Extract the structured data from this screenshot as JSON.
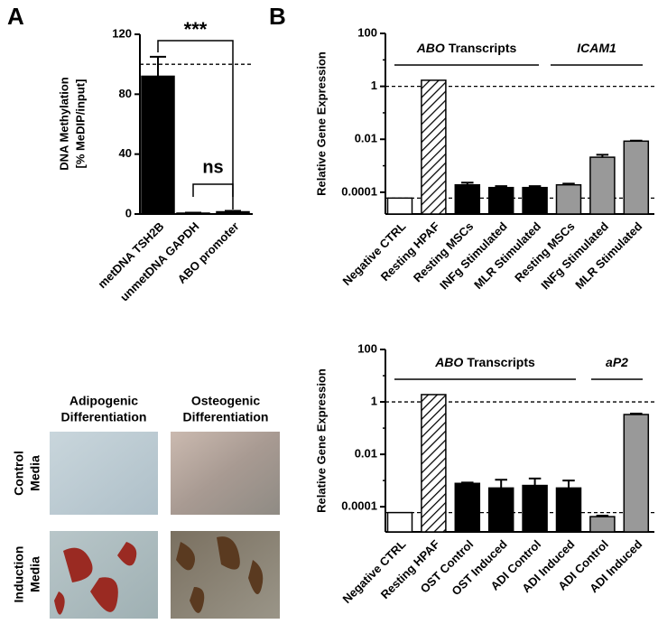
{
  "panels": [
    "A",
    "B"
  ],
  "chart_data": [
    {
      "type": "bar",
      "log": false,
      "ylabel": [
        "DNA Methylation",
        "[% MeDIP/input]"
      ],
      "categories": [
        "metDNA TSH2B",
        "unmetDNA GAPDH",
        "ABO promoter"
      ],
      "values": [
        92,
        0.6,
        1.5
      ],
      "errors": [
        13,
        0.3,
        0.6
      ],
      "fills": [
        "black",
        "black",
        "black"
      ],
      "ylim": [
        0,
        120
      ],
      "yticks": [
        0,
        40,
        80,
        120
      ],
      "reference_lines": [
        100
      ],
      "annotations": [
        "***",
        "ns"
      ]
    },
    {
      "type": "bar",
      "log": true,
      "ylabel": [
        "Relative Gene Expression"
      ],
      "categories": [
        "Negative CTRL",
        "Resting HPAF",
        "Resting MSCs",
        "INFg Stimulated",
        "MLR Stimulated",
        "Resting MSCs",
        "INFg Stimulated",
        "MLR Stimulated"
      ],
      "values": [
        6e-05,
        1.7,
        0.00019,
        0.00015,
        0.00015,
        0.00019,
        0.0021,
        0.0085
      ],
      "errors": [
        0,
        0,
        4e-05,
        2e-05,
        2e-05,
        2e-05,
        0.0005,
        0.0004
      ],
      "fills": [
        "white",
        "hatch",
        "black",
        "black",
        "black",
        "gray",
        "gray",
        "gray"
      ],
      "ylim": [
        1.5e-05,
        100
      ],
      "yticks": [
        0.0001,
        0.01,
        1,
        100
      ],
      "reference_lines": [
        1,
        6e-05
      ],
      "groups": [
        {
          "italic": "ABO",
          "text": "Transcripts"
        },
        {
          "italic": "ICAM1"
        }
      ]
    },
    {
      "type": "bar",
      "log": true,
      "ylabel": [
        "Relative Gene Expression"
      ],
      "categories": [
        "Negative CTRL",
        "Resting HPAF",
        "OST Control",
        "OST Induced",
        "ADI Control",
        "ADI Induced",
        "ADI Control",
        "ADI Induced"
      ],
      "values": [
        6e-05,
        1.9,
        0.00078,
        0.00052,
        0.00065,
        0.00052,
        4.2e-05,
        0.33
      ],
      "errors": [
        0,
        0,
        6e-05,
        0.00055,
        0.00055,
        0.00048,
        4e-06,
        0.03
      ],
      "fills": [
        "white",
        "hatch",
        "black",
        "black",
        "black",
        "black",
        "gray",
        "gray"
      ],
      "ylim": [
        1.1e-05,
        100
      ],
      "yticks": [
        0.0001,
        0.01,
        1,
        100
      ],
      "reference_lines": [
        1,
        6e-05
      ],
      "groups": [
        {
          "italic": "ABO",
          "text": "Transcripts"
        },
        {
          "italic": "aP2"
        }
      ]
    }
  ],
  "micrographs": {
    "columns": [
      [
        "Adipogenic",
        "Differentiation"
      ],
      [
        "Osteogenic",
        "Differentiation"
      ]
    ],
    "rows": [
      [
        "Control",
        "Media"
      ],
      [
        "Induction",
        "Media"
      ]
    ]
  }
}
